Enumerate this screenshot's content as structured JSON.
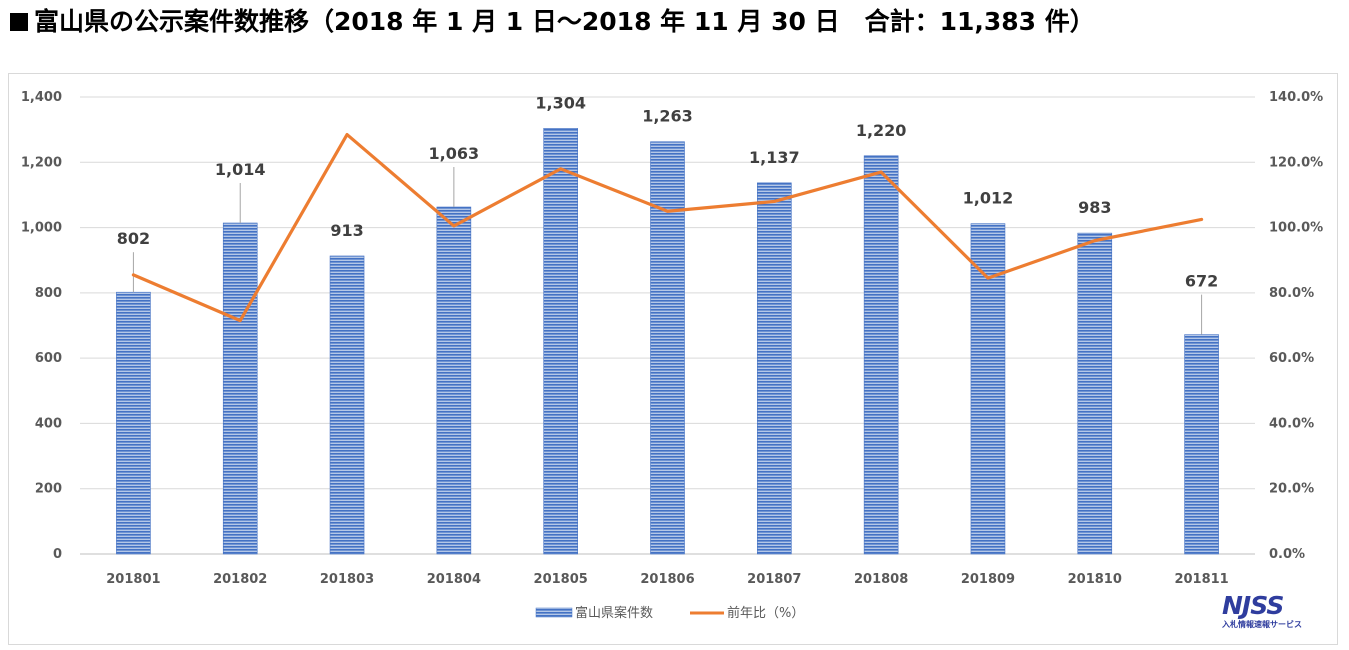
{
  "title": "富山県の公示案件数推移（2018 年 1 月 1 日～2018 年 11 月 30 日　合計：11,383 件）",
  "chart_data": {
    "type": "bar",
    "categories": [
      "201801",
      "201802",
      "201803",
      "201804",
      "201805",
      "201806",
      "201807",
      "201808",
      "201809",
      "201810",
      "201811"
    ],
    "series": [
      {
        "name": "富山県案件数",
        "type": "bar",
        "axis": "left",
        "color": "#4472c4",
        "values": [
          802,
          1014,
          913,
          1063,
          1304,
          1263,
          1137,
          1220,
          1012,
          983,
          672
        ],
        "labels": [
          "802",
          "1,014",
          "913",
          "1,063",
          "1,304",
          "1,263",
          "1,137",
          "1,220",
          "1,012",
          "983",
          "672"
        ]
      },
      {
        "name": "前年比（%）",
        "type": "line",
        "axis": "right",
        "color": "#ed7d31",
        "values": [
          85.5,
          71.5,
          128.5,
          100.5,
          118,
          105,
          108,
          117,
          84.5,
          96,
          102.5
        ]
      }
    ],
    "y_left": {
      "min": 0,
      "max": 1400,
      "step": 200,
      "tick_labels": [
        "0",
        "200",
        "400",
        "600",
        "800",
        "1,000",
        "1,200",
        "1,400"
      ]
    },
    "y_right": {
      "min": 0,
      "max": 140,
      "step": 20,
      "tick_labels": [
        "0.0%",
        "20.0%",
        "40.0%",
        "60.0%",
        "80.0%",
        "100.0%",
        "120.0%",
        "140.0%"
      ]
    },
    "grid": true,
    "legend_position": "bottom"
  },
  "logo": {
    "mark": "NJSS",
    "subtitle": "入札情報速報サービス"
  }
}
